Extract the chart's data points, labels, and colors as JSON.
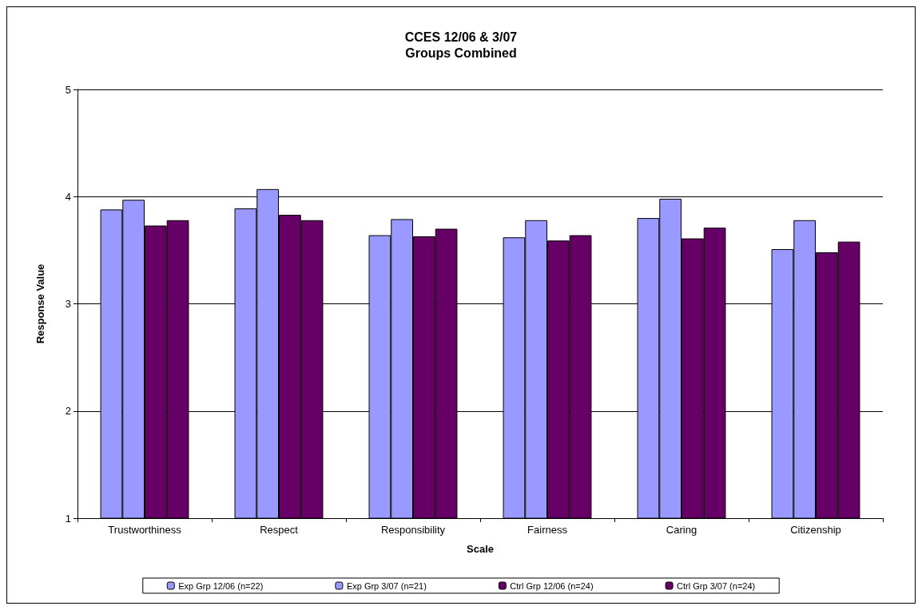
{
  "chart_data": {
    "type": "bar",
    "title": "CCES 12/06 & 3/07\nGroups Combined",
    "xlabel": "Scale",
    "ylabel": "Response Value",
    "categories": [
      "Trustworthiness",
      "Respect",
      "Responsibility",
      "Fairness",
      "Caring",
      "Citizenship"
    ],
    "series": [
      {
        "name": "Exp Grp 12/06 (n=22)",
        "color": "#9999ff",
        "values": [
          3.88,
          3.89,
          3.64,
          3.62,
          3.8,
          3.51
        ]
      },
      {
        "name": "Exp Grp 3/07 (n=21)",
        "color": "#9999ff",
        "values": [
          3.97,
          4.07,
          3.79,
          3.78,
          3.98,
          3.78
        ]
      },
      {
        "name": "Ctrl Grp 12/06 (n=24)",
        "color": "#660066",
        "values": [
          3.73,
          3.83,
          3.63,
          3.59,
          3.61,
          3.48
        ]
      },
      {
        "name": "Ctrl Grp 3/07 (n=24)",
        "color": "#660066",
        "values": [
          3.78,
          3.78,
          3.7,
          3.64,
          3.71,
          3.58
        ]
      }
    ],
    "ylim": [
      1,
      5
    ],
    "yticks": [
      1,
      2,
      3,
      4,
      5
    ],
    "grid": "y",
    "legend": "bottom"
  }
}
